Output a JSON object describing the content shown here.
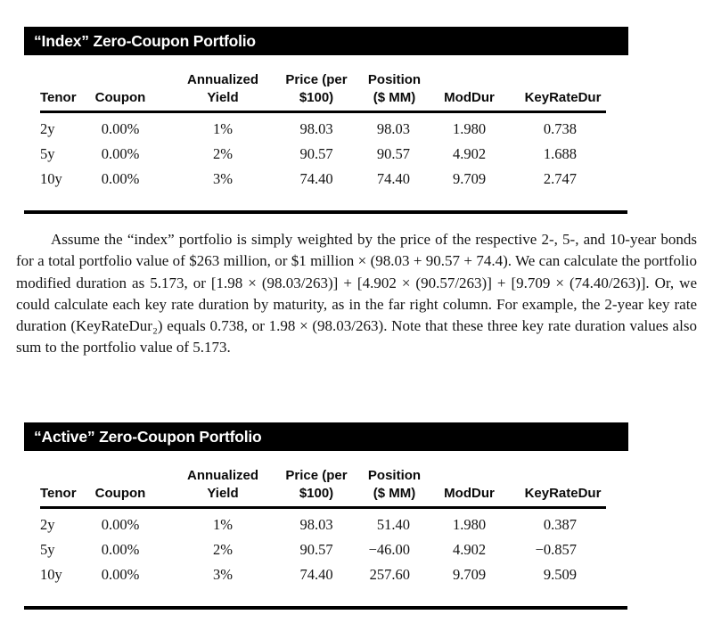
{
  "tables": [
    {
      "title": "“Index” Zero-Coupon Portfolio",
      "columns": [
        {
          "line1": "",
          "line2": "Tenor"
        },
        {
          "line1": "",
          "line2": "Coupon"
        },
        {
          "line1": "Annualized",
          "line2": "Yield"
        },
        {
          "line1": "Price (per",
          "line2": "$100)"
        },
        {
          "line1": "Position",
          "line2": "($ MM)"
        },
        {
          "line1": "",
          "line2": "ModDur"
        },
        {
          "line1": "",
          "line2": "KeyRateDur"
        }
      ],
      "rows": [
        [
          "2y",
          "0.00%",
          "1%",
          "98.03",
          "98.03",
          "1.980",
          "0.738"
        ],
        [
          "5y",
          "0.00%",
          "2%",
          "90.57",
          "90.57",
          "4.902",
          "1.688"
        ],
        [
          "10y",
          "0.00%",
          "3%",
          "74.40",
          "74.40",
          "9.709",
          "2.747"
        ]
      ]
    },
    {
      "title": "“Active” Zero-Coupon Portfolio",
      "columns": [
        {
          "line1": "",
          "line2": "Tenor"
        },
        {
          "line1": "",
          "line2": "Coupon"
        },
        {
          "line1": "Annualized",
          "line2": "Yield"
        },
        {
          "line1": "Price (per",
          "line2": "$100)"
        },
        {
          "line1": "Position",
          "line2": "($ MM)"
        },
        {
          "line1": "",
          "line2": "ModDur"
        },
        {
          "line1": "",
          "line2": "KeyRateDur"
        }
      ],
      "rows": [
        [
          "2y",
          "0.00%",
          "1%",
          "98.03",
          "51.40",
          "1.980",
          "0.387"
        ],
        [
          "5y",
          "0.00%",
          "2%",
          "90.57",
          "−46.00",
          "4.902",
          "−0.857"
        ],
        [
          "10y",
          "0.00%",
          "3%",
          "74.40",
          "257.60",
          "9.709",
          "9.509"
        ]
      ]
    }
  ],
  "paragraph": "Assume the “index” portfolio is simply weighted by the price of the respective 2-, 5-, and 10-year bonds for a total portfolio value of $263 million, or $1 million × (98.03 + 90.57 + 74.4). We can calculate the portfolio modified duration as 5.173, or [1.98 × (98.03/263)] + [4.902 × (90.57/263)] + [9.709 × (74.40/263)]. Or, we could calculate each key rate duration by maturity, as in the far right column. For example, the 2-year key rate duration (KeyRateDur₂) equals 0.738, or 1.98 × (98.03/263). Note that these three key rate duration values also sum to the portfolio value of 5.173.",
  "colors": {
    "bar_background": "#000000",
    "bar_text": "#ffffff",
    "body_text": "#141414"
  }
}
